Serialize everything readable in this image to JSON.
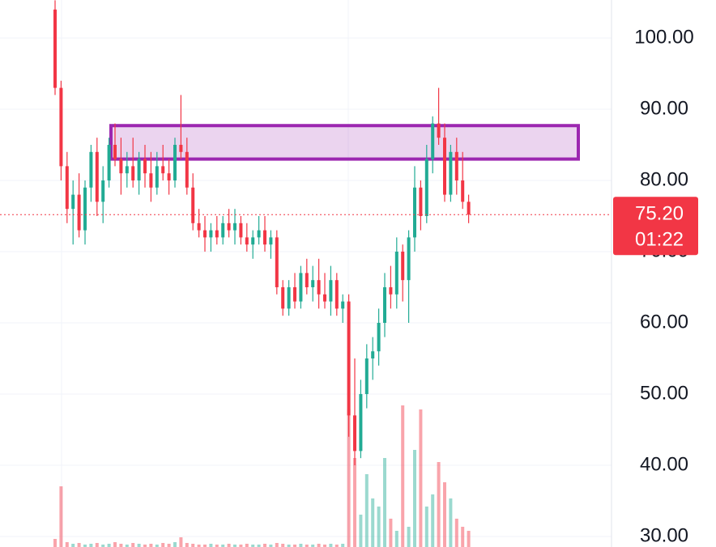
{
  "chart_data": {
    "type": "candlestick",
    "ylim": [
      28.52,
      105.34
    ],
    "yticks": [
      {
        "value": 30,
        "label": "30.00"
      },
      {
        "value": 40,
        "label": "40.00"
      },
      {
        "value": 50,
        "label": "50.00"
      },
      {
        "value": 60,
        "label": "60.00"
      },
      {
        "value": 70,
        "label": "70.00"
      },
      {
        "value": 80,
        "label": "80.00"
      },
      {
        "value": 90,
        "label": "90.00"
      },
      {
        "value": 100,
        "label": "100.00"
      }
    ],
    "grid": true,
    "up_color": "#22ab94",
    "down_color": "#f23645",
    "open": [
      104,
      93,
      82,
      76,
      78,
      73,
      79,
      84,
      77,
      80,
      85,
      83,
      81,
      82,
      80,
      83,
      81,
      79,
      82,
      81,
      80,
      85,
      84,
      79,
      74,
      73,
      72,
      73,
      72,
      74,
      73,
      74,
      72,
      71,
      72,
      73,
      71,
      72,
      65,
      62,
      65,
      63,
      67,
      65,
      66,
      64,
      63,
      66,
      62,
      63,
      47,
      42,
      50,
      55,
      56,
      60,
      65,
      64,
      70,
      66,
      72,
      79,
      75,
      83,
      88,
      86,
      78,
      84,
      80,
      77
    ],
    "high": [
      105.3,
      94,
      84,
      80,
      81,
      80,
      85,
      86,
      82,
      86,
      88,
      86,
      84,
      86,
      84,
      85,
      84,
      84,
      85,
      83,
      86,
      92,
      86,
      81,
      76,
      75,
      74,
      75,
      75,
      76,
      76,
      75,
      74,
      73,
      75,
      75,
      73,
      73,
      66,
      66,
      67,
      68,
      69,
      68,
      69,
      67,
      68,
      67,
      64,
      64,
      55,
      52,
      57,
      58,
      62,
      67,
      68,
      72,
      71,
      73,
      82,
      80,
      85,
      89,
      93,
      88,
      85,
      86,
      84,
      78
    ],
    "low": [
      92,
      80,
      74,
      71,
      72,
      71,
      77,
      75,
      74,
      79,
      82,
      78,
      79,
      79,
      78,
      79,
      77,
      78,
      80,
      78,
      79,
      83,
      78,
      73,
      72,
      70,
      70,
      71,
      71,
      72,
      71,
      71,
      70,
      69,
      71,
      70,
      69,
      64,
      61,
      61,
      62,
      62,
      64,
      63,
      62,
      62,
      61,
      61,
      60,
      44,
      40,
      41,
      48,
      52,
      54,
      58,
      62,
      62,
      63,
      60,
      70,
      73,
      74,
      81,
      85,
      77,
      77,
      78,
      76,
      74
    ],
    "close": [
      93,
      82,
      76,
      78,
      73,
      79,
      84,
      77,
      80,
      85,
      83,
      81,
      82,
      80,
      83,
      81,
      79,
      82,
      81,
      80,
      85,
      84,
      79,
      74,
      73,
      72,
      73,
      72,
      74,
      73,
      74,
      72,
      71,
      72,
      73,
      71,
      72,
      65,
      62,
      65,
      63,
      67,
      65,
      66,
      64,
      63,
      66,
      62,
      63,
      47,
      42,
      50,
      55,
      56,
      60,
      65,
      64,
      70,
      66,
      72,
      79,
      75,
      83,
      88,
      86,
      78,
      84,
      80,
      77,
      75.2
    ],
    "volume": [
      10,
      75,
      6,
      4,
      5,
      3,
      4,
      5,
      3,
      4,
      6,
      4,
      3,
      5,
      4,
      3,
      4,
      3,
      5,
      4,
      6,
      12,
      5,
      4,
      3,
      3,
      4,
      3,
      3,
      4,
      3,
      3,
      4,
      3,
      3,
      4,
      3,
      5,
      4,
      3,
      3,
      4,
      3,
      3,
      4,
      3,
      4,
      3,
      4,
      170,
      110,
      40,
      90,
      60,
      50,
      110,
      35,
      20,
      175,
      25,
      120,
      170,
      50,
      65,
      105,
      80,
      60,
      35,
      25,
      20
    ],
    "zone": {
      "top": 87.7,
      "bottom": 83.0,
      "color": "#9c27b0"
    },
    "current_price": {
      "value": 75.2,
      "label": "75.20"
    },
    "countdown": "01:22"
  }
}
